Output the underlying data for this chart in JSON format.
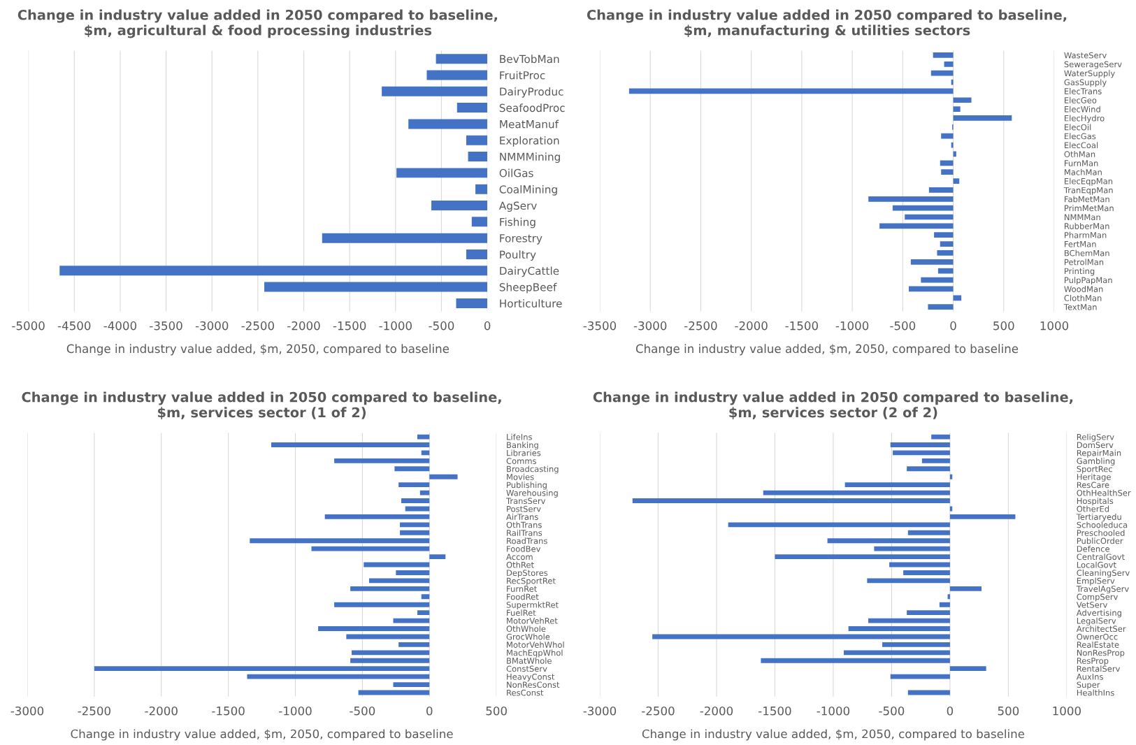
{
  "chart_data": [
    {
      "type": "bar",
      "orientation": "horizontal",
      "title": "Change in industry value added in 2050 compared to baseline,\n$m, agricultural & food processing industries",
      "xlabel": "Change in industry value added, $m, 2050, compared to baseline",
      "color": "#4472c4",
      "grid": "x",
      "xlim": [
        -5000,
        0
      ],
      "xticks": [
        -5000,
        -4500,
        -4000,
        -3500,
        -3000,
        -2500,
        -2000,
        -1500,
        -1000,
        -500,
        0
      ],
      "categories": [
        "BevTobMan",
        "FruitProc",
        "DairyProduc",
        "SeafoodProc",
        "MeatManuf",
        "Exploration",
        "NMMMining",
        "OilGas",
        "CoalMining",
        "AgServ",
        "Fishing",
        "Forestry",
        "Poultry",
        "DairyCattle",
        "SheepBeef",
        "Horticulture"
      ],
      "values": [
        -560,
        -660,
        -1150,
        -330,
        -860,
        -230,
        -210,
        -990,
        -130,
        -610,
        -170,
        -1800,
        -230,
        -4660,
        -2430,
        -340
      ]
    },
    {
      "type": "bar",
      "orientation": "horizontal",
      "title": "Change in industry value added in 2050 compared to baseline,\n$m, manufacturing & utilities sectors",
      "xlabel": "Change in industry value added, $m, 2050, compared to baseline",
      "color": "#4472c4",
      "grid": "x",
      "xlim": [
        -3500,
        1000
      ],
      "xticks": [
        -3500,
        -3000,
        -2500,
        -2000,
        -1500,
        -1000,
        -500,
        0,
        500,
        1000
      ],
      "categories": [
        "WasteServ",
        "SewerageServ",
        "WaterSupply",
        "GasSupply",
        "ElecTrans",
        "ElecGeo",
        "ElecWind",
        "ElecHydro",
        "ElecOil",
        "ElecGas",
        "ElecCoal",
        "OthMan",
        "FurnMan",
        "MachMan",
        "ElecEqpMan",
        "TranEqpMan",
        "FabMetMan",
        "PrimMetMan",
        "NMMMan",
        "RubberMan",
        "PharmMan",
        "FertMan",
        "BChemMan",
        "PetrolMan",
        "Printing",
        "PulpPapMan",
        "WoodMan",
        "ClothMan",
        "TextMan"
      ],
      "values": [
        -200,
        -90,
        -220,
        -20,
        -3210,
        180,
        70,
        580,
        -10,
        -120,
        -20,
        30,
        -130,
        -120,
        60,
        -240,
        -840,
        -600,
        -480,
        -730,
        -190,
        -130,
        -160,
        -420,
        -150,
        -320,
        -440,
        80,
        -250
      ]
    },
    {
      "type": "bar",
      "orientation": "horizontal",
      "title": "Change in industry value added in 2050 compared to baseline,\n$m, services sector (1 of 2)",
      "xlabel": "Change in industry value added, $m, 2050, compared to baseline",
      "color": "#4472c4",
      "grid": "x",
      "xlim": [
        -3000,
        500
      ],
      "xticks": [
        -3000,
        -2500,
        -2000,
        -1500,
        -1000,
        -500,
        0,
        500
      ],
      "categories": [
        "LifeIns",
        "Banking",
        "Libraries",
        "Comms",
        "Broadcasting",
        "Movies",
        "Publishing",
        "Warehousing",
        "TransServ",
        "PostServ",
        "AirTrans",
        "OthTrans",
        "RailTrans",
        "RoadTrans",
        "FoodBev",
        "Accom",
        "OthRet",
        "DepStores",
        "RecSportRet",
        "FurnRet",
        "FoodRet",
        "SupermktRet",
        "FuelRet",
        "MotorVehRet",
        "OthWhole",
        "GrocWhole",
        "MotorVehWhol",
        "MachEqpWhol",
        "BMatWhole",
        "ConstServ",
        "HeavyConst",
        "NonResConst",
        "ResConst"
      ],
      "values": [
        -90,
        -1180,
        -60,
        -710,
        -260,
        210,
        -230,
        -70,
        -210,
        -180,
        -780,
        -220,
        -220,
        -1340,
        -880,
        120,
        -490,
        -250,
        -450,
        -590,
        -60,
        -710,
        -90,
        -270,
        -830,
        -620,
        -230,
        -580,
        -590,
        -2500,
        -1360,
        -270,
        -530
      ]
    },
    {
      "type": "bar",
      "orientation": "horizontal",
      "title": "Change in industry value added in 2050 compared to baseline,\n$m, services sector (2 of 2)",
      "xlabel": "Change in industry value added, $m, 2050, compared to baseline",
      "color": "#4472c4",
      "grid": "x",
      "xlim": [
        -3000,
        1000
      ],
      "xticks": [
        -3000,
        -2500,
        -2000,
        -1500,
        -1000,
        -500,
        0,
        500,
        1000
      ],
      "categories": [
        "ReligServ",
        "DomServ",
        "RepairMain",
        "Gambling",
        "SportRec",
        "Heritage",
        "ResCare",
        "OthHealthSer",
        "Hospitals",
        "OtherEd",
        "Tertiaryedu",
        "Schooleduca",
        "Preschooled",
        "PublicOrder",
        "Defence",
        "CentralGovt",
        "LocalGovt",
        "CleaningServ",
        "EmplServ",
        "TravelAgServ",
        "CompServ",
        "VetServ",
        "Advertising",
        "LegalServ",
        "ArchitectSer",
        "OwnerOcc",
        "RealEstate",
        "NonResProp",
        "ResProp",
        "RentalServ",
        "AuxIns",
        "Super",
        "HealthIns"
      ],
      "values": [
        -160,
        -510,
        -490,
        -240,
        -370,
        20,
        -900,
        -1600,
        -2720,
        20,
        560,
        -1900,
        -360,
        -1050,
        -650,
        -1500,
        -520,
        -400,
        -710,
        270,
        -20,
        -90,
        -370,
        -700,
        -870,
        -2550,
        -580,
        -910,
        -1620,
        310,
        -510,
        0,
        -360
      ]
    }
  ]
}
